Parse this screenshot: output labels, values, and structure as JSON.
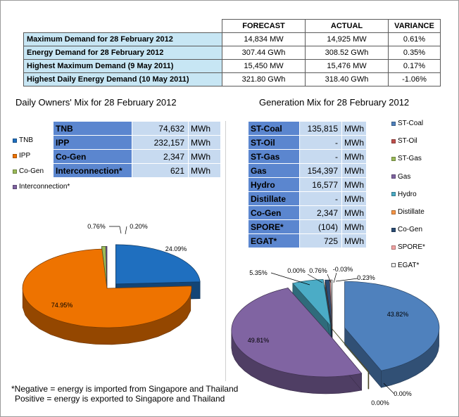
{
  "summary": {
    "headers": [
      "FORECAST",
      "ACTUAL",
      "VARIANCE"
    ],
    "rows": [
      {
        "label": "Maximum Demand for 28 February 2012",
        "forecast": "14,834  MW",
        "actual": "14,925  MW",
        "variance": "0.61%"
      },
      {
        "label": "Energy Demand for 28 February 2012",
        "forecast": "307.44  GWh",
        "actual": "308.52  GWh",
        "variance": "0.35%"
      },
      {
        "label": "Highest Maximum Demand (9 May 2011)",
        "forecast": "15,450  MW",
        "actual": "15,476  MW",
        "variance": "0.17%"
      },
      {
        "label": "Highest Daily Energy Demand (10 May 2011)",
        "forecast": "321.80  GWh",
        "actual": "318.40  GWh",
        "variance": "-1.06%"
      }
    ]
  },
  "owners": {
    "title": "Daily Owners' Mix for 28 February 2012",
    "rows": [
      {
        "label": "TNB",
        "value": "74,632",
        "unit": "MWh"
      },
      {
        "label": "IPP",
        "value": "232,157",
        "unit": "MWh"
      },
      {
        "label": "Co-Gen",
        "value": "2,347",
        "unit": "MWh"
      },
      {
        "label": "Interconnection*",
        "value": "621",
        "unit": "MWh"
      }
    ]
  },
  "generation": {
    "title": "Generation Mix for 28 February 2012",
    "rows": [
      {
        "label": "ST-Coal",
        "value": "135,815",
        "unit": "MWh"
      },
      {
        "label": "ST-Oil",
        "value": "-",
        "unit": "MWh"
      },
      {
        "label": "ST-Gas",
        "value": "-",
        "unit": "MWh"
      },
      {
        "label": "Gas",
        "value": "154,397",
        "unit": "MWh"
      },
      {
        "label": "Hydro",
        "value": "16,577",
        "unit": "MWh"
      },
      {
        "label": "Distillate",
        "value": "-",
        "unit": "MWh"
      },
      {
        "label": "Co-Gen",
        "value": "2,347",
        "unit": "MWh"
      },
      {
        "label": "SPORE*",
        "value": "(104)",
        "unit": "MWh"
      },
      {
        "label": "EGAT*",
        "value": "725",
        "unit": "MWh"
      }
    ]
  },
  "chart_data": [
    {
      "type": "pie",
      "title": "Daily Owners' Mix for 28 February 2012",
      "legend": "left",
      "categories": [
        "TNB",
        "IPP",
        "Co-Gen",
        "Interconnection*"
      ],
      "values": [
        24.09,
        74.95,
        0.76,
        0.2
      ],
      "labels": [
        "24.09%",
        "74.95%",
        "0.76%",
        "0.20%"
      ],
      "colors": [
        "#1f6fbf",
        "#ee7300",
        "#9bbb59",
        "#8064a2"
      ]
    },
    {
      "type": "pie",
      "title": "Generation Mix for 28 February 2012",
      "legend": "right",
      "categories": [
        "ST-Coal",
        "ST-Oil",
        "ST-Gas",
        "Gas",
        "Hydro",
        "Distillate",
        "Co-Gen",
        "SPORE*",
        "EGAT*"
      ],
      "values": [
        43.82,
        0.0,
        0.0,
        49.81,
        5.35,
        0.0,
        0.76,
        -0.03,
        0.23
      ],
      "labels": [
        "43.82%",
        "0.00%",
        "0.00%",
        "49.81%",
        "5.35%",
        "0.00%",
        "0.76%",
        "-0.03%",
        "0.23%"
      ],
      "colors": [
        "#4f81bd",
        "#c0504d",
        "#9bbb59",
        "#8064a2",
        "#4bacc6",
        "#f79646",
        "#2c4d75",
        "#f4a3a3",
        "#ffffff"
      ]
    }
  ],
  "footnote": {
    "line1": "*Negative = energy is imported from Singapore and Thailand",
    "line2": "Positive = energy is exported to Singapore and Thailand"
  }
}
